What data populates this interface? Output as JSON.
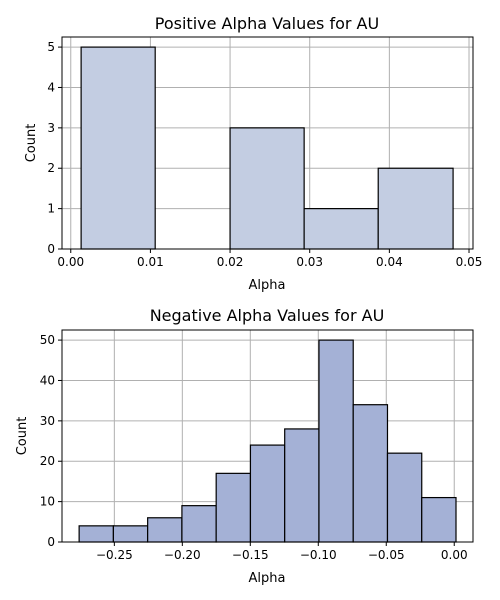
{
  "chart_data": [
    {
      "type": "bar",
      "title": "Positive Alpha Values for AU",
      "xlabel": "Alpha",
      "ylabel": "Count",
      "bar_color": "#c3cde2",
      "xlim": [
        -0.0011,
        0.0505
      ],
      "ylim": [
        0,
        5.25
      ],
      "grid": true,
      "xticks": [
        0.0,
        0.01,
        0.02,
        0.03,
        0.04,
        0.05
      ],
      "xtick_labels": [
        "0.00",
        "0.01",
        "0.02",
        "0.03",
        "0.04",
        "0.05"
      ],
      "yticks": [
        0,
        1,
        2,
        3,
        4,
        5
      ],
      "ytick_labels": [
        "0",
        "1",
        "2",
        "3",
        "4",
        "5"
      ],
      "bins": [
        {
          "start": 0.0013,
          "end": 0.0106,
          "count": 5
        },
        {
          "start": 0.0106,
          "end": 0.02,
          "count": 0
        },
        {
          "start": 0.02,
          "end": 0.0293,
          "count": 3
        },
        {
          "start": 0.0293,
          "end": 0.0386,
          "count": 1
        },
        {
          "start": 0.0386,
          "end": 0.048,
          "count": 2
        }
      ]
    },
    {
      "type": "bar",
      "title": "Negative Alpha Values for AU",
      "xlabel": "Alpha",
      "ylabel": "Count",
      "bar_color": "#a4b1d6",
      "xlim": [
        -0.2885,
        0.0138
      ],
      "ylim": [
        0,
        52.5
      ],
      "grid": true,
      "xticks": [
        -0.25,
        -0.2,
        -0.15,
        -0.1,
        -0.05,
        0.0
      ],
      "xtick_labels": [
        "−0.25",
        "−0.20",
        "−0.15",
        "−0.10",
        "−0.05",
        "0.00"
      ],
      "yticks": [
        0,
        10,
        20,
        30,
        40,
        50
      ],
      "ytick_labels": [
        "0",
        "10",
        "20",
        "30",
        "40",
        "50"
      ],
      "bins": [
        {
          "start": -0.2759,
          "end": -0.2507,
          "count": 4
        },
        {
          "start": -0.2507,
          "end": -0.2255,
          "count": 4
        },
        {
          "start": -0.2255,
          "end": -0.2003,
          "count": 6
        },
        {
          "start": -0.2003,
          "end": -0.1751,
          "count": 9
        },
        {
          "start": -0.1751,
          "end": -0.1499,
          "count": 17
        },
        {
          "start": -0.1499,
          "end": -0.1247,
          "count": 24
        },
        {
          "start": -0.1247,
          "end": -0.0995,
          "count": 28
        },
        {
          "start": -0.0995,
          "end": -0.0743,
          "count": 50
        },
        {
          "start": -0.0743,
          "end": -0.0491,
          "count": 34
        },
        {
          "start": -0.0491,
          "end": -0.0239,
          "count": 22
        },
        {
          "start": -0.0239,
          "end": 0.0013,
          "count": 11
        }
      ]
    }
  ]
}
